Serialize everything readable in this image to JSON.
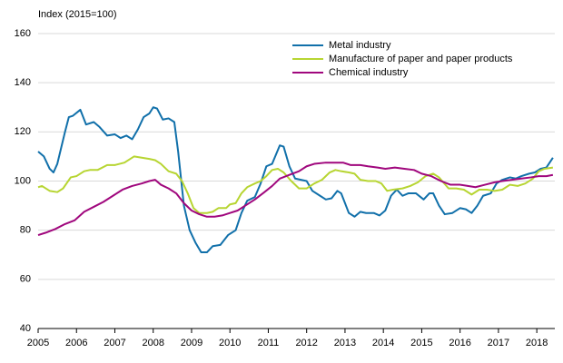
{
  "chart_data": {
    "type": "line",
    "y_label": "Index (2015=100)",
    "xlim": [
      2005,
      2018.47
    ],
    "xticks": [
      2005,
      2006,
      2007,
      2008,
      2009,
      2010,
      2011,
      2012,
      2013,
      2014,
      2015,
      2016,
      2017,
      2018
    ],
    "ylim": [
      40,
      160
    ],
    "yticks": [
      40,
      60,
      80,
      100,
      120,
      140,
      160
    ],
    "grid": true,
    "series": [
      {
        "name": "Metal industry",
        "color": "#1170aa",
        "x": [
          2005.0,
          2005.15,
          2005.3,
          2005.4,
          2005.5,
          2005.7,
          2005.8,
          2005.9,
          2006.1,
          2006.25,
          2006.45,
          2006.6,
          2006.8,
          2007.0,
          2007.15,
          2007.3,
          2007.45,
          2007.6,
          2007.75,
          2007.9,
          2008.0,
          2008.1,
          2008.25,
          2008.4,
          2008.55,
          2008.65,
          2008.8,
          2008.95,
          2009.1,
          2009.25,
          2009.4,
          2009.55,
          2009.75,
          2009.95,
          2010.15,
          2010.3,
          2010.45,
          2010.65,
          2010.8,
          2010.95,
          2011.1,
          2011.3,
          2011.4,
          2011.55,
          2011.7,
          2011.85,
          2012.0,
          2012.15,
          2012.35,
          2012.5,
          2012.65,
          2012.8,
          2012.9,
          2013.1,
          2013.25,
          2013.4,
          2013.55,
          2013.75,
          2013.9,
          2014.05,
          2014.2,
          2014.35,
          2014.5,
          2014.65,
          2014.85,
          2015.05,
          2015.2,
          2015.3,
          2015.45,
          2015.6,
          2015.8,
          2016.0,
          2016.15,
          2016.3,
          2016.45,
          2016.6,
          2016.8,
          2016.95,
          2017.1,
          2017.3,
          2017.45,
          2017.6,
          2017.8,
          2017.95,
          2018.1,
          2018.25,
          2018.42
        ],
        "values": [
          112,
          110,
          105,
          103.5,
          107,
          120,
          126,
          126.5,
          129,
          123,
          124,
          122,
          118.5,
          119,
          117.5,
          118.5,
          117,
          121,
          126,
          127.5,
          130,
          129.5,
          125,
          125.5,
          124,
          112,
          90,
          80,
          75,
          71,
          71,
          73.5,
          74,
          78,
          80,
          87,
          92,
          93.5,
          99,
          106,
          107,
          114.5,
          114,
          106,
          101,
          100.5,
          100,
          96,
          94,
          92.5,
          93,
          96,
          95,
          87,
          85.5,
          87.5,
          87,
          87,
          86,
          88,
          94,
          96.5,
          94,
          95,
          95,
          92.5,
          95,
          95,
          90,
          86.5,
          87,
          89,
          88.5,
          87,
          90,
          94,
          95,
          99,
          100.5,
          101.5,
          101,
          102,
          103,
          103.5,
          105,
          105.5,
          109.5
        ]
      },
      {
        "name": "Manufacture of paper and paper products",
        "color": "#b7d532",
        "x": [
          2005.0,
          2005.1,
          2005.3,
          2005.5,
          2005.65,
          2005.85,
          2006.0,
          2006.2,
          2006.35,
          2006.55,
          2006.8,
          2007.0,
          2007.25,
          2007.5,
          2007.7,
          2007.9,
          2008.05,
          2008.2,
          2008.4,
          2008.6,
          2008.75,
          2008.9,
          2009.05,
          2009.2,
          2009.4,
          2009.55,
          2009.7,
          2009.9,
          2010.0,
          2010.15,
          2010.3,
          2010.45,
          2010.65,
          2010.8,
          2010.95,
          2011.1,
          2011.25,
          2011.4,
          2011.6,
          2011.8,
          2012.0,
          2012.2,
          2012.4,
          2012.6,
          2012.75,
          2012.9,
          2013.1,
          2013.25,
          2013.4,
          2013.6,
          2013.8,
          2013.95,
          2014.1,
          2014.25,
          2014.5,
          2014.7,
          2014.9,
          2015.1,
          2015.3,
          2015.45,
          2015.7,
          2015.9,
          2016.1,
          2016.3,
          2016.5,
          2016.7,
          2016.9,
          2017.1,
          2017.3,
          2017.5,
          2017.7,
          2017.9,
          2018.05,
          2018.2,
          2018.42
        ],
        "values": [
          97.5,
          98,
          96,
          95.5,
          97,
          101.5,
          102,
          104,
          104.5,
          104.5,
          106.5,
          106.5,
          107.5,
          110,
          109.5,
          109,
          108.5,
          107,
          104,
          103,
          100,
          95,
          89,
          87,
          87,
          87.5,
          89,
          89,
          90.5,
          91,
          95,
          97.5,
          99,
          100,
          102,
          104.5,
          105,
          103.5,
          100,
          97,
          97,
          99,
          100.5,
          103.5,
          104.5,
          104,
          103.5,
          103,
          100.5,
          100,
          100,
          99,
          96,
          96.5,
          97,
          98,
          99.5,
          102,
          103,
          101.5,
          97,
          97,
          96.5,
          94.5,
          96.5,
          96.5,
          96,
          96.5,
          98.5,
          98,
          99,
          101,
          104,
          105,
          105.5
        ]
      },
      {
        "name": "Chemical industry",
        "color": "#a0077d",
        "x": [
          2005.0,
          2005.2,
          2005.45,
          2005.7,
          2005.95,
          2006.2,
          2006.45,
          2006.7,
          2006.95,
          2007.2,
          2007.45,
          2007.7,
          2007.9,
          2008.05,
          2008.2,
          2008.4,
          2008.6,
          2008.8,
          2009.0,
          2009.2,
          2009.4,
          2009.6,
          2009.8,
          2010.0,
          2010.2,
          2010.4,
          2010.65,
          2010.9,
          2011.1,
          2011.3,
          2011.55,
          2011.8,
          2012.0,
          2012.2,
          2012.5,
          2012.75,
          2012.95,
          2013.15,
          2013.4,
          2013.6,
          2013.85,
          2014.05,
          2014.3,
          2014.55,
          2014.8,
          2015.0,
          2015.25,
          2015.5,
          2015.75,
          2016.0,
          2016.2,
          2016.4,
          2016.65,
          2016.9,
          2017.1,
          2017.35,
          2017.6,
          2017.85,
          2018.05,
          2018.25,
          2018.42
        ],
        "values": [
          78,
          79,
          80.5,
          82.5,
          84,
          87.5,
          89.5,
          91.5,
          94,
          96.5,
          98,
          99,
          100,
          100.5,
          98.5,
          97,
          95,
          91,
          88,
          86.5,
          85.5,
          85.5,
          86,
          87,
          88,
          90,
          92.5,
          95.5,
          98,
          101,
          102.5,
          104,
          106,
          107,
          107.5,
          107.5,
          107.5,
          106.5,
          106.5,
          106,
          105.5,
          105,
          105.5,
          105,
          104.5,
          103,
          102,
          100,
          98.5,
          98.5,
          98,
          97.5,
          98.5,
          99.5,
          100,
          100.5,
          101,
          101.5,
          102,
          102,
          102.5
        ]
      }
    ]
  }
}
